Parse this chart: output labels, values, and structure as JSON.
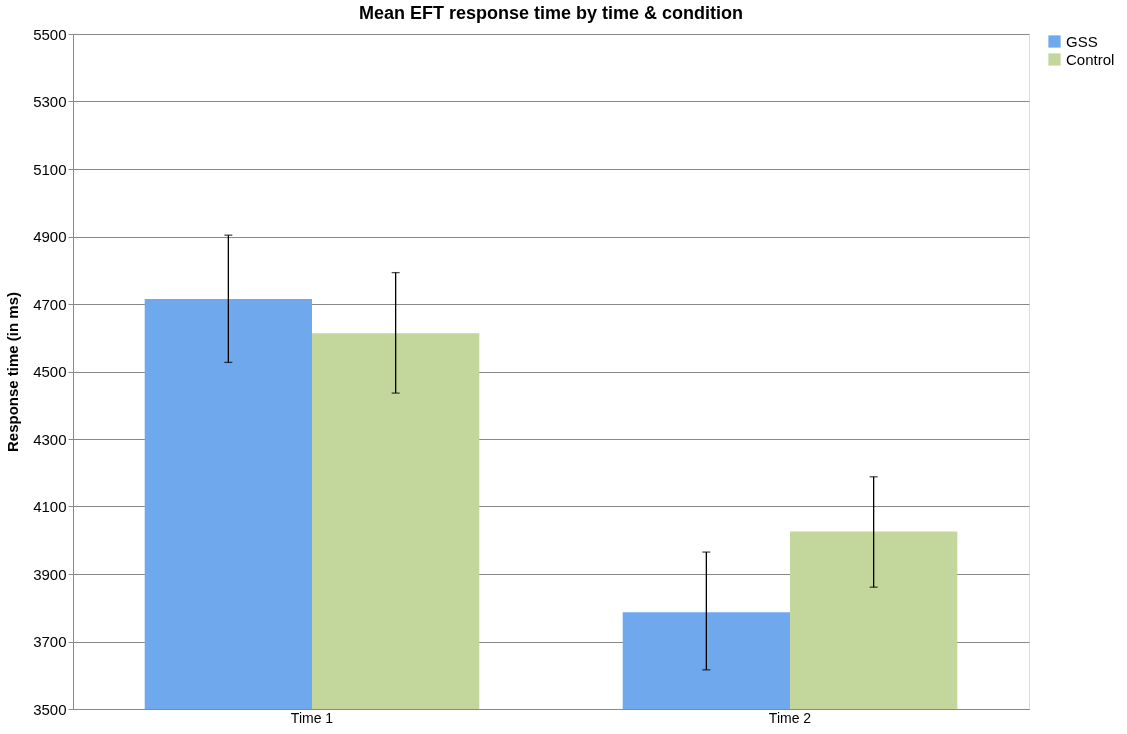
{
  "chart_data": {
    "type": "bar",
    "title": "Mean EFT response time by time & condition",
    "ylabel": "Response time (in ms)",
    "categories": [
      "Time 1",
      "Time 2"
    ],
    "series": [
      {
        "name": "GSS",
        "color": "#6fa8ec",
        "values": [
          4715,
          3787
        ],
        "errors": [
          [
            4527,
            4904
          ],
          [
            3616,
            3965
          ]
        ]
      },
      {
        "name": "Control",
        "color": "#c3d69b",
        "values": [
          4613,
          4026
        ],
        "errors": [
          [
            4436,
            4793
          ],
          [
            3861,
            4188
          ]
        ]
      }
    ],
    "ylim": [
      3500,
      5500
    ],
    "yticks": [
      3500,
      3700,
      3900,
      4100,
      4300,
      4500,
      4700,
      4900,
      5100,
      5300,
      5500
    ],
    "grid": "y",
    "legend": "right"
  }
}
